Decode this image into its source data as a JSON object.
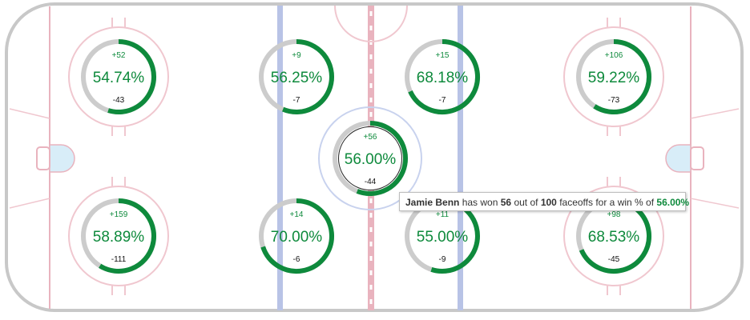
{
  "colors": {
    "won": "#0e8a3c",
    "lost": "#cccccc",
    "red_line": "#e9b3be",
    "blue_line": "#b8c3e6",
    "board": "#c8c8c8",
    "crease": "#d8edf8",
    "circle_line": "#f0c7cf",
    "center_circle": "#c8d2ee"
  },
  "faceoff_dots": [
    {
      "position": "left-top",
      "won": "+52",
      "lost": "-43",
      "pct": "54.74%",
      "fraction": 0.5474
    },
    {
      "position": "left-bottom",
      "won": "+159",
      "lost": "-111",
      "pct": "58.89%",
      "fraction": 0.5889
    },
    {
      "position": "neutral-left-top",
      "won": "+9",
      "lost": "-7",
      "pct": "56.25%",
      "fraction": 0.5625
    },
    {
      "position": "neutral-left-bottom",
      "won": "+14",
      "lost": "-6",
      "pct": "70.00%",
      "fraction": 0.7
    },
    {
      "position": "center",
      "won": "+56",
      "lost": "-44",
      "pct": "56.00%",
      "fraction": 0.56
    },
    {
      "position": "neutral-right-top",
      "won": "+15",
      "lost": "-7",
      "pct": "68.18%",
      "fraction": 0.6818
    },
    {
      "position": "neutral-right-bottom",
      "won": "+11",
      "lost": "-9",
      "pct": "55.00%",
      "fraction": 0.55
    },
    {
      "position": "right-top",
      "won": "+106",
      "lost": "-73",
      "pct": "59.22%",
      "fraction": 0.5922
    },
    {
      "position": "right-bottom",
      "won": "+98",
      "lost": "-45",
      "pct": "68.53%",
      "fraction": 0.6853
    }
  ],
  "tooltip": {
    "player": "Jamie Benn",
    "text_won": "has won",
    "won": "56",
    "text_outof": "out of",
    "total": "100",
    "text_for": "faceoffs for a win % of",
    "pct": "56.00%"
  }
}
